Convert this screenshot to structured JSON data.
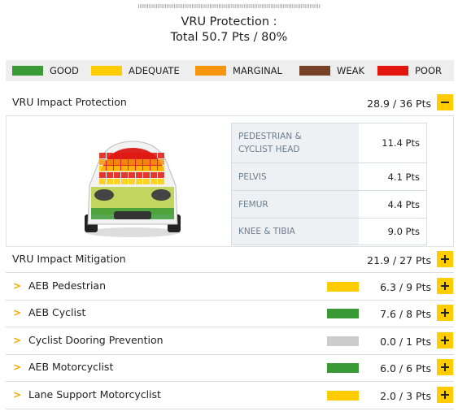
{
  "header": {
    "title": "VRU Protection :",
    "total": "Total 50.7 Pts / 80%"
  },
  "legend": [
    {
      "label": "GOOD",
      "color": "#3a9a35"
    },
    {
      "label": "ADEQUATE",
      "color": "#ffcc00"
    },
    {
      "label": "MARGINAL",
      "color": "#f7950f"
    },
    {
      "label": "WEAK",
      "color": "#774128"
    },
    {
      "label": "POOR",
      "color": "#e2160f"
    }
  ],
  "impact_protection": {
    "title": "VRU Impact Protection",
    "score": "28.9 / 36 Pts",
    "rows": [
      {
        "label": "PEDESTRIAN & CYCLIST HEAD",
        "value": "11.4 Pts"
      },
      {
        "label": "PELVIS",
        "value": "4.1 Pts"
      },
      {
        "label": "FEMUR",
        "value": "4.4 Pts"
      },
      {
        "label": "KNEE & TIBIA",
        "value": "9.0 Pts"
      }
    ]
  },
  "impact_mitigation": {
    "title": "VRU Impact Mitigation",
    "score": "21.9 / 27 Pts",
    "rows": [
      {
        "label": "AEB Pedestrian",
        "score": "6.3 / 9 Pts",
        "color": "#ffcc00"
      },
      {
        "label": "AEB Cyclist",
        "score": "7.6 / 8 Pts",
        "color": "#3a9a35"
      },
      {
        "label": "Cyclist Dooring Prevention",
        "score": "0.0 / 1 Pts",
        "color": "#cccccc"
      },
      {
        "label": "AEB Motorcyclist",
        "score": "6.0 / 6 Pts",
        "color": "#3a9a35"
      },
      {
        "label": "Lane Support Motorcyclist",
        "score": "2.0 / 3 Pts",
        "color": "#ffcc00"
      }
    ]
  }
}
